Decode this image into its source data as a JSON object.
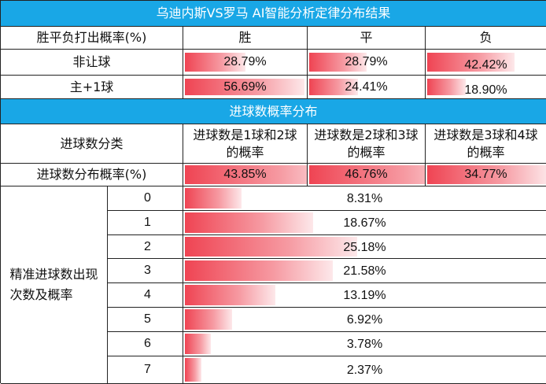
{
  "title": "乌迪内斯VS罗马    AI智能分析定律分布结果",
  "result_table": {
    "header": [
      "胜平负打出概率(%)",
      "胜",
      "平",
      "负"
    ],
    "rows": [
      {
        "label": "非让球",
        "values": [
          "28.79%",
          "28.79%",
          "42.42%"
        ]
      },
      {
        "label": "主+1球",
        "values": [
          "56.69%",
          "24.41%",
          "18.90%"
        ]
      }
    ]
  },
  "goal_section_title": "进球数概率分布",
  "goal_class": {
    "header_label": "进球数分类",
    "headers": [
      "进球数是1球和2球的概率",
      "进球数是2球和3球的概率",
      "进球数是3球和4球的概率"
    ],
    "row_label": "进球数分布概率(%)",
    "values": [
      "43.85%",
      "46.76%",
      "34.77%"
    ]
  },
  "goal_detail": {
    "side_label": "精准进球数出现次数及概率",
    "rows": [
      {
        "goals": "0",
        "value": "8.31%"
      },
      {
        "goals": "1",
        "value": "18.67%"
      },
      {
        "goals": "2",
        "value": "25.18%"
      },
      {
        "goals": "3",
        "value": "21.58%"
      },
      {
        "goals": "4",
        "value": "13.19%"
      },
      {
        "goals": "5",
        "value": "6.92%"
      },
      {
        "goals": "6",
        "value": "3.78%"
      },
      {
        "goals": "7",
        "value": "2.37%"
      }
    ]
  },
  "chart_data": {
    "type": "table",
    "result_probabilities": {
      "categories": [
        "胜",
        "平",
        "负"
      ],
      "series": [
        {
          "name": "非让球",
          "values": [
            28.79,
            28.79,
            42.42
          ]
        },
        {
          "name": "主+1球",
          "values": [
            56.69,
            24.41,
            18.9
          ]
        }
      ]
    },
    "goal_range_probabilities": {
      "categories": [
        "进球数是1球和2球的概率",
        "进球数是2球和3球的概率",
        "进球数是3球和4球的概率"
      ],
      "values": [
        43.85,
        46.76,
        34.77
      ]
    },
    "exact_goal_probabilities": {
      "categories": [
        "0",
        "1",
        "2",
        "3",
        "4",
        "5",
        "6",
        "7"
      ],
      "values": [
        8.31,
        18.67,
        25.18,
        21.58,
        13.19,
        6.92,
        3.78,
        2.37
      ]
    },
    "colors": {
      "header": "#19a7e6",
      "bar": "#ef4453"
    }
  }
}
